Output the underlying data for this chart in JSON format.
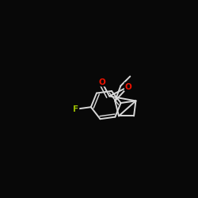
{
  "background_color": "#080808",
  "bond_color": "#d8d8d8",
  "atom_colors": {
    "O": "#ee1100",
    "F": "#99bb00"
  },
  "figsize": [
    2.5,
    2.5
  ],
  "dpi": 100
}
